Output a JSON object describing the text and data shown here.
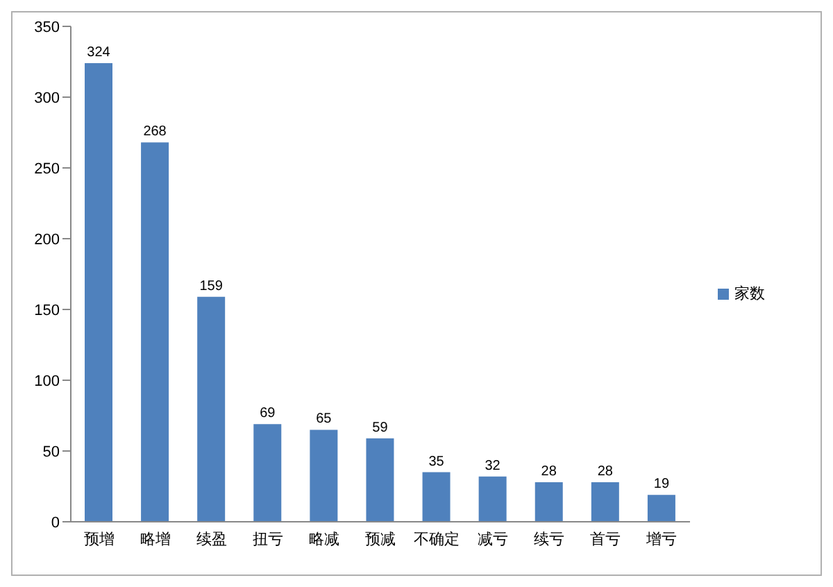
{
  "chart_data": {
    "type": "bar",
    "categories": [
      "预增",
      "略增",
      "续盈",
      "扭亏",
      "略减",
      "预减",
      "不确定",
      "减亏",
      "续亏",
      "首亏",
      "增亏"
    ],
    "series": [
      {
        "name": "家数",
        "color": "#4f81bd",
        "values": [
          324,
          268,
          159,
          69,
          65,
          59,
          35,
          32,
          28,
          28,
          19
        ]
      }
    ],
    "ylim": [
      0,
      350
    ],
    "yticks": [
      0,
      50,
      100,
      150,
      200,
      250,
      300,
      350
    ],
    "grid": false,
    "legend": "right",
    "data_labels": true
  }
}
